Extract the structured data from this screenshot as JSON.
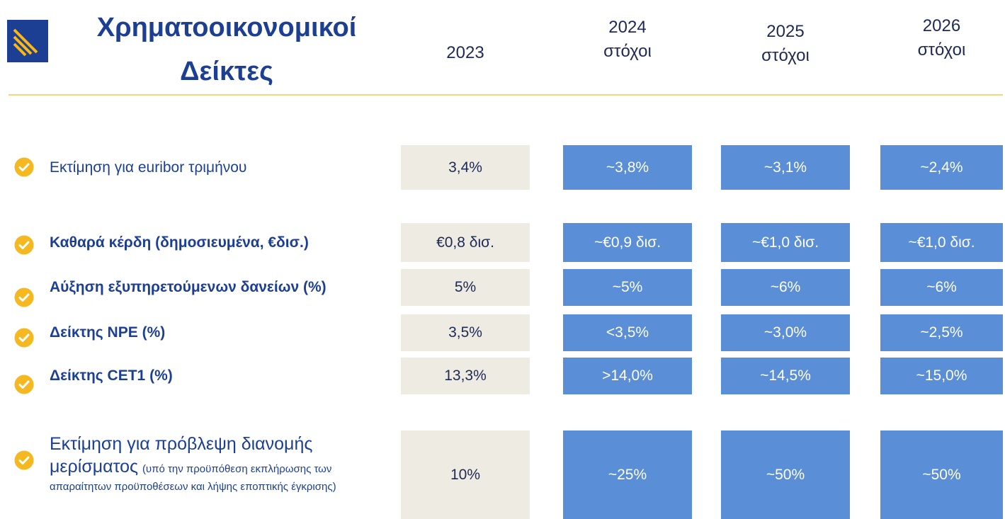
{
  "header": {
    "title": "Χρηματοοικονομικοί Δείκτες"
  },
  "columns": [
    {
      "year": "2023"
    },
    {
      "year": "2024",
      "note": "στόχοι"
    },
    {
      "year": "2025",
      "note": "στόχοι"
    },
    {
      "year": "2026",
      "note": "στόχοι"
    }
  ],
  "rows": [
    {
      "label": "Εκτίμηση για euribor τριμήνου",
      "bold": false,
      "values": [
        "3,4%",
        "~3,8%",
        "~3,1%",
        "~2,4%"
      ]
    },
    {
      "label": "Καθαρά κέρδη (δημοσιευμένα, €δισ.)",
      "bold": true,
      "values": [
        "€0,8 δισ.",
        "~€0,9 δισ.",
        "~€1,0 δισ.",
        "~€1,0 δισ."
      ]
    },
    {
      "label": "Αύξηση εξυπηρετούμενων δανείων (%)",
      "bold": true,
      "values": [
        "5%",
        "~5%",
        "~6%",
        "~6%"
      ]
    },
    {
      "label": "Δείκτης NPE (%)",
      "bold": true,
      "values": [
        "3,5%",
        "<3,5%",
        "~3,0%",
        "~2,5%"
      ]
    },
    {
      "label": "Δείκτης CET1 (%)",
      "bold": true,
      "values": [
        "13,3%",
        ">14,0%",
        "~14,5%",
        "~15,0%"
      ]
    },
    {
      "label": "Εκτίμηση για πρόβλεψη διανομής μερίσματος",
      "note": "(υπό την προϋπόθεση εκπλήρωσης των απαραίτητων προϋποθέσεων και λήψης εποπτικής έγκρισης)",
      "bold": false,
      "values": [
        "10%",
        "~25%",
        "~50%",
        "~50%"
      ]
    }
  ]
}
